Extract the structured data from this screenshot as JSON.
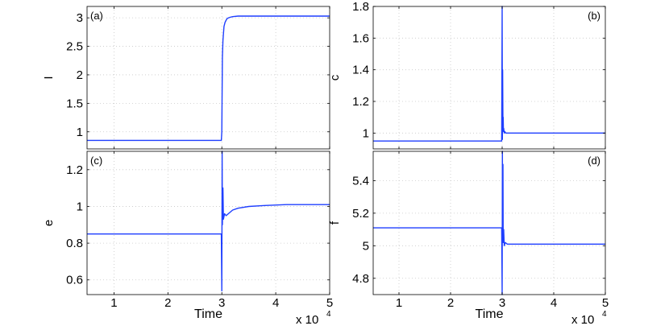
{
  "figure": {
    "common_xlabel": "Time",
    "x_multiplier_base": "x 10",
    "x_multiplier_exp": "4",
    "line_color": "#1f3fff"
  },
  "chart_data": [
    {
      "type": "line",
      "panel_label": "(a)",
      "ylabel": "I",
      "xlim": [
        0.5,
        5
      ],
      "ylim": [
        0.7,
        3.2
      ],
      "xticks": [
        1,
        2,
        3,
        4,
        5
      ],
      "yticks": [
        1,
        1.5,
        2,
        2.5,
        3
      ],
      "yticklabels": [
        "1",
        "1.5",
        "2",
        "2.5",
        "3"
      ],
      "grid": true,
      "series": [
        {
          "x": [
            0.5,
            2.99,
            3.0,
            3.01,
            3.02,
            3.04,
            3.06,
            3.08,
            3.1,
            3.15,
            3.2,
            3.3,
            3.5,
            5.0
          ],
          "y": [
            0.85,
            0.85,
            1.0,
            2.3,
            2.6,
            2.85,
            2.92,
            2.96,
            2.99,
            3.01,
            3.02,
            3.03,
            3.03,
            3.03
          ]
        }
      ]
    },
    {
      "type": "line",
      "panel_label": "(b)",
      "ylabel": "c",
      "xlim": [
        0.5,
        5
      ],
      "ylim": [
        0.9,
        1.8
      ],
      "xticks": [
        1,
        2,
        3,
        4,
        5
      ],
      "yticks": [
        1,
        1.2,
        1.4,
        1.6,
        1.8
      ],
      "yticklabels": [
        "1",
        "1.2",
        "1.4",
        "1.6",
        "1.8"
      ],
      "grid": true,
      "series": [
        {
          "x": [
            0.5,
            2.99,
            3.0,
            3.005,
            3.01,
            3.015,
            3.02,
            3.025,
            3.03,
            3.04,
            3.05,
            3.07,
            3.1,
            3.2,
            5.0
          ],
          "y": [
            0.95,
            0.95,
            1.8,
            0.96,
            1.4,
            1.05,
            1.1,
            1.01,
            1.03,
            1.0,
            1.01,
            1.0,
            1.0,
            1.0,
            1.0
          ]
        }
      ]
    },
    {
      "type": "line",
      "panel_label": "(c)",
      "ylabel": "e",
      "xlim": [
        0.5,
        5
      ],
      "ylim": [
        0.52,
        1.3
      ],
      "xticks": [
        1,
        2,
        3,
        4,
        5
      ],
      "yticks": [
        0.6,
        0.8,
        1,
        1.2
      ],
      "yticklabels": [
        "0.6",
        "0.8",
        "1",
        "1.2"
      ],
      "grid": true,
      "series": [
        {
          "x": [
            0.5,
            2.99,
            3.0,
            3.005,
            3.01,
            3.02,
            3.03,
            3.05,
            3.08,
            3.12,
            3.2,
            3.3,
            3.5,
            3.8,
            4.2,
            5.0
          ],
          "y": [
            0.85,
            0.85,
            0.54,
            1.3,
            0.9,
            1.1,
            0.93,
            0.96,
            0.95,
            0.96,
            0.98,
            0.99,
            1.0,
            1.005,
            1.01,
            1.01
          ]
        }
      ]
    },
    {
      "type": "line",
      "panel_label": "(d)",
      "ylabel": "f",
      "xlim": [
        0.5,
        5
      ],
      "ylim": [
        4.7,
        5.58
      ],
      "xticks": [
        1,
        2,
        3,
        4,
        5
      ],
      "yticks": [
        4.8,
        5,
        5.2,
        5.4
      ],
      "yticklabels": [
        "4.8",
        "5",
        "5.2",
        "5.4"
      ],
      "grid": true,
      "series": [
        {
          "x": [
            0.5,
            2.99,
            3.0,
            3.005,
            3.01,
            3.015,
            3.02,
            3.03,
            3.04,
            3.06,
            3.1,
            3.2,
            5.0
          ],
          "y": [
            5.11,
            5.11,
            4.7,
            5.58,
            5.05,
            5.5,
            5.02,
            5.1,
            5.0,
            5.02,
            5.01,
            5.01,
            5.01
          ]
        }
      ]
    }
  ]
}
